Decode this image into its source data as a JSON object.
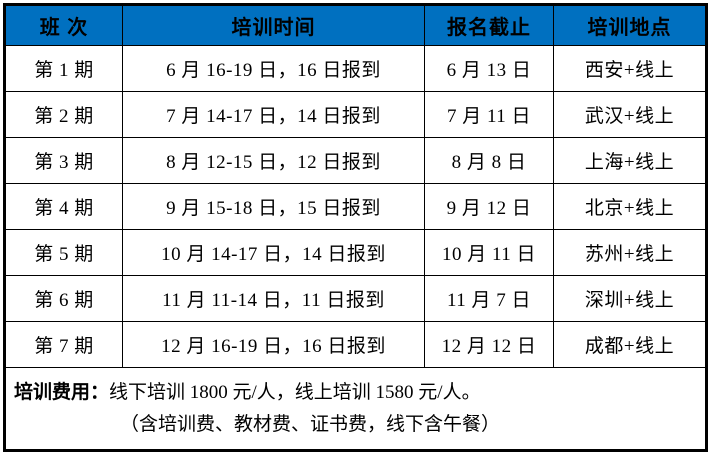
{
  "colors": {
    "header_bg": "#0070C0",
    "header_text": "#FFFFFF",
    "border": "#000000",
    "body_text": "#000000"
  },
  "table": {
    "headers": [
      "班 次",
      "培训时间",
      "报名截止",
      "培训地点"
    ],
    "rows": [
      {
        "session": "第 1 期",
        "time": "6 月 16-19 日，16 日报到",
        "deadline": "6 月 13 日",
        "location": "西安+线上"
      },
      {
        "session": "第 2 期",
        "time": "7 月 14-17 日，14 日报到",
        "deadline": "7 月 11 日",
        "location": "武汉+线上"
      },
      {
        "session": "第 3 期",
        "time": "8 月 12-15 日，12 日报到",
        "deadline": "8 月 8 日",
        "location": "上海+线上"
      },
      {
        "session": "第 4 期",
        "time": "9 月 15-18 日，15 日报到",
        "deadline": "9 月 12 日",
        "location": "北京+线上"
      },
      {
        "session": "第 5 期",
        "time": "10 月 14-17 日，14 日报到",
        "deadline": "10 月 11 日",
        "location": "苏州+线上"
      },
      {
        "session": "第 6 期",
        "time": "11 月 11-14 日，11 日报到",
        "deadline": "11 月 7 日",
        "location": "深圳+线上"
      },
      {
        "session": "第 7 期",
        "time": "12 月 16-19 日，16 日报到",
        "deadline": "12 月 12 日",
        "location": "成都+线上"
      }
    ],
    "fee": {
      "label": "培训费用：",
      "line1": "线下培训 1800 元/人，线上培训 1580 元/人。",
      "line2": "（含培训费、教材费、证书费，线下含午餐）"
    }
  }
}
